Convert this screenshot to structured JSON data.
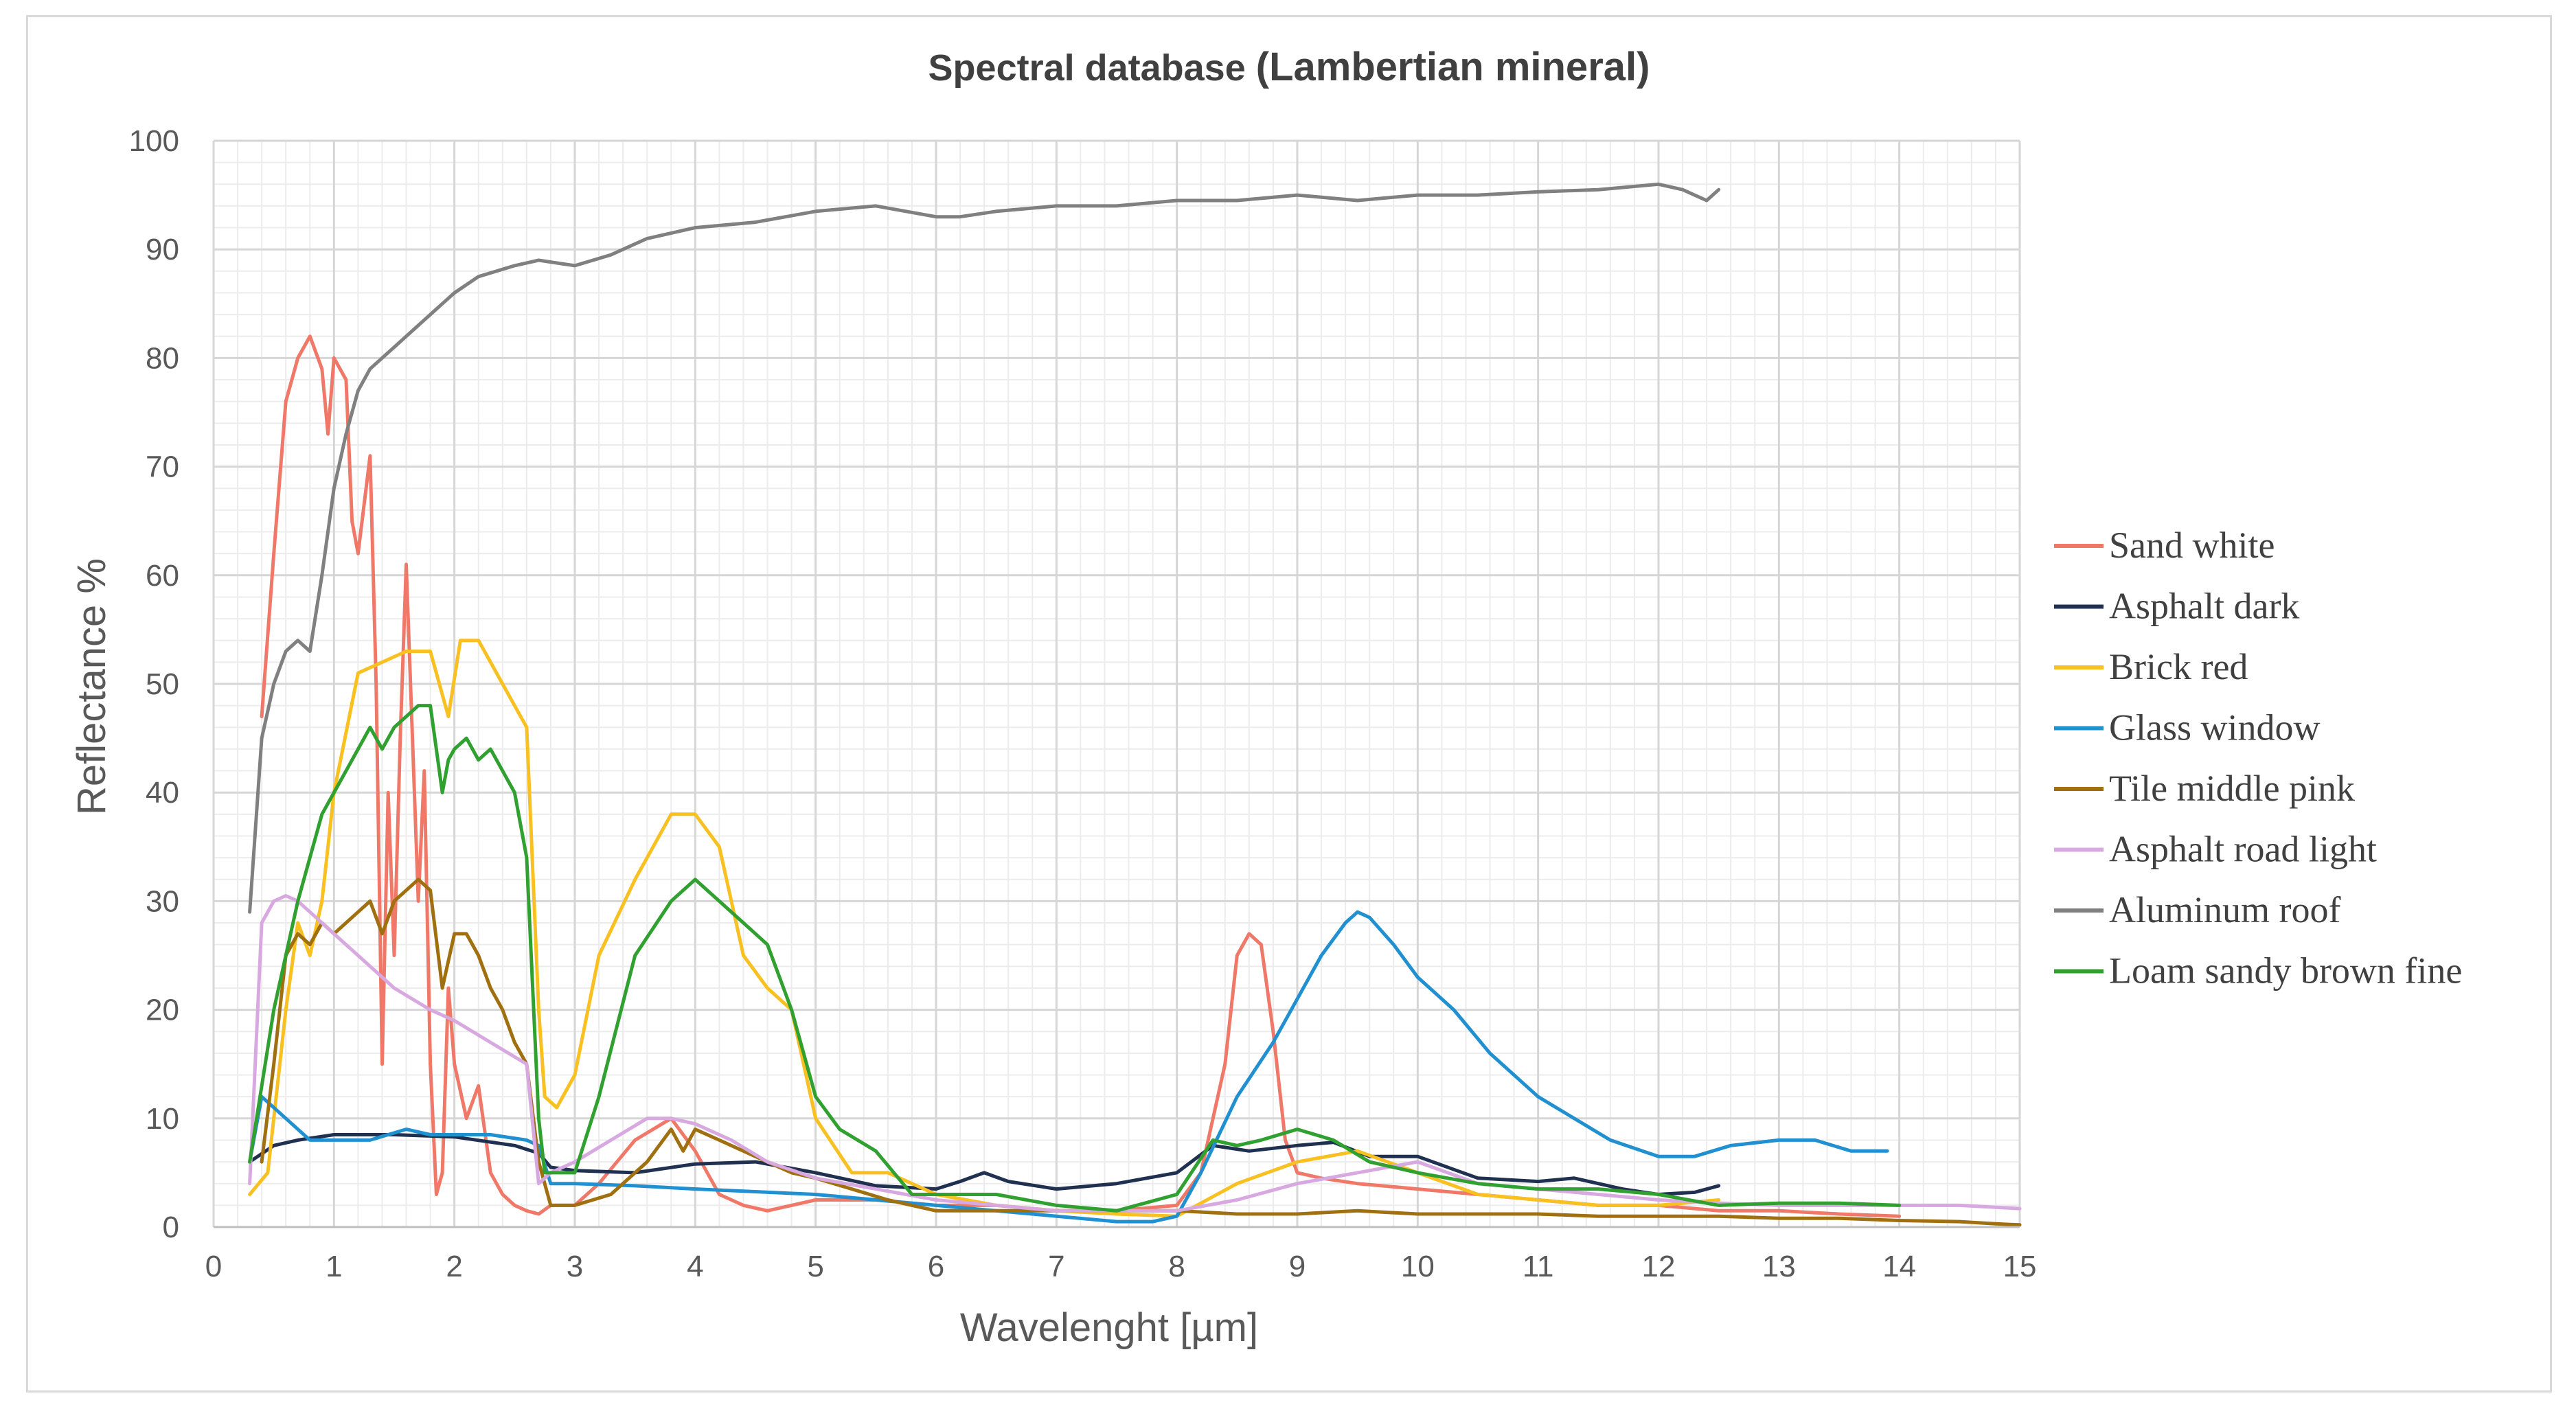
{
  "chart_data": {
    "type": "line",
    "title_parts": [
      "Spectral database ",
      "(Lambertian mineral)"
    ],
    "xlabel": "Wavelenght [µm]",
    "ylabel": "Reflectance  %",
    "xlim": [
      0,
      15
    ],
    "ylim": [
      0,
      100
    ],
    "x_ticks": [
      0,
      1,
      2,
      3,
      4,
      5,
      6,
      7,
      8,
      9,
      10,
      11,
      12,
      13,
      14,
      15
    ],
    "y_ticks": [
      0,
      10,
      20,
      30,
      40,
      50,
      60,
      70,
      80,
      90,
      100
    ],
    "grid": {
      "major": true,
      "minor": true,
      "x_minor_step": 0.2,
      "y_minor_step": 2
    },
    "legend_position": "right",
    "series": [
      {
        "name": "Sand white",
        "color": "#f07868",
        "x": [
          0.4,
          0.5,
          0.6,
          0.7,
          0.8,
          0.9,
          0.95,
          1.0,
          1.1,
          1.15,
          1.2,
          1.3,
          1.35,
          1.4,
          1.45,
          1.5,
          1.55,
          1.6,
          1.7,
          1.75,
          1.8,
          1.85,
          1.9,
          1.95,
          2.0,
          2.1,
          2.2,
          2.3,
          2.4,
          2.5,
          2.6,
          2.7,
          2.8,
          2.9,
          3.0,
          3.2,
          3.5,
          3.8,
          4.0,
          4.2,
          4.4,
          4.6,
          4.8,
          5.0,
          5.5,
          6.0,
          6.5,
          7.0,
          7.5,
          8.0,
          8.2,
          8.4,
          8.5,
          8.6,
          8.7,
          8.8,
          8.9,
          9.0,
          9.2,
          9.5,
          10.0,
          10.5,
          11.0,
          11.5,
          12.0,
          12.5,
          13.0,
          13.5,
          14.0
        ],
        "y": [
          47,
          62,
          76,
          80,
          82,
          79,
          73,
          80,
          78,
          65,
          62,
          71,
          50,
          15,
          40,
          25,
          45,
          61,
          30,
          42,
          15,
          3,
          5,
          22,
          15,
          10,
          13,
          5,
          3,
          2,
          1.5,
          1.2,
          2,
          2,
          2,
          4,
          8,
          10,
          7,
          3,
          2,
          1.5,
          2,
          2.5,
          2.5,
          2,
          2,
          1.5,
          1.5,
          2,
          5,
          15,
          25,
          27,
          26,
          18,
          8,
          5,
          4.5,
          4,
          3.5,
          3,
          2.5,
          2,
          2,
          1.5,
          1.5,
          1.2,
          1.0
        ]
      },
      {
        "name": "Asphalt dark",
        "color": "#203050",
        "x": [
          0.3,
          0.5,
          0.7,
          1.0,
          1.5,
          2.0,
          2.5,
          2.7,
          2.8,
          3.0,
          3.5,
          4.0,
          4.5,
          5.0,
          5.5,
          6.0,
          6.2,
          6.4,
          6.6,
          7.0,
          7.5,
          8.0,
          8.3,
          8.6,
          9.0,
          9.3,
          9.6,
          10.0,
          10.5,
          11.0,
          11.3,
          11.7,
          12.0,
          12.3,
          12.5
        ],
        "y": [
          6,
          7.5,
          8,
          8.5,
          8.5,
          8.3,
          7.5,
          6.8,
          5.5,
          5.2,
          5,
          5.8,
          6,
          5,
          3.8,
          3.5,
          4.2,
          5,
          4.2,
          3.5,
          4,
          5,
          7.5,
          7,
          7.5,
          7.8,
          6.5,
          6.5,
          4.5,
          4.2,
          4.5,
          3.5,
          3,
          3.2,
          3.8
        ]
      },
      {
        "name": "Brick red",
        "color": "#f8c020",
        "x": [
          0.3,
          0.45,
          0.6,
          0.7,
          0.8,
          0.9,
          1.0,
          1.2,
          1.4,
          1.6,
          1.8,
          1.95,
          2.05,
          2.2,
          2.4,
          2.6,
          2.7,
          2.75,
          2.85,
          3.0,
          3.2,
          3.5,
          3.8,
          4.0,
          4.2,
          4.4,
          4.6,
          4.8,
          5.0,
          5.3,
          5.6,
          6.0,
          6.5,
          7.0,
          7.5,
          8.0,
          8.5,
          9.0,
          9.5,
          10.0,
          10.5,
          11.0,
          11.5,
          12.0,
          12.5
        ],
        "y": [
          3,
          5,
          20,
          28,
          25,
          30,
          40,
          51,
          52,
          53,
          53,
          47,
          54,
          54,
          50,
          46,
          20,
          12,
          11,
          14,
          25,
          32,
          38,
          38,
          35,
          25,
          22,
          20,
          10,
          5,
          5,
          3,
          2,
          1.5,
          1.2,
          1,
          4,
          6,
          7,
          5,
          3,
          2.5,
          2,
          2,
          2.5
        ]
      },
      {
        "name": "Glass window",
        "color": "#2090d0",
        "x": [
          0.3,
          0.4,
          0.5,
          0.6,
          0.8,
          1.0,
          1.3,
          1.6,
          1.8,
          2.0,
          2.3,
          2.6,
          2.7,
          2.8,
          3.0,
          3.5,
          4.0,
          5.0,
          6.0,
          7.0,
          7.5,
          7.8,
          8.0,
          8.2,
          8.5,
          8.8,
          9.0,
          9.2,
          9.4,
          9.5,
          9.6,
          9.8,
          10.0,
          10.3,
          10.6,
          11.0,
          11.3,
          11.6,
          12.0,
          12.3,
          12.6,
          13.0,
          13.3,
          13.6,
          13.9
        ],
        "y": [
          6,
          12,
          11,
          10,
          8,
          8,
          8,
          9,
          8.5,
          8.5,
          8.5,
          8,
          7.5,
          4,
          4,
          3.8,
          3.5,
          3,
          2,
          1,
          0.5,
          0.5,
          1,
          5,
          12,
          17,
          21,
          25,
          28,
          29,
          28.5,
          26,
          23,
          20,
          16,
          12,
          10,
          8,
          6.5,
          6.5,
          7.5,
          8,
          8,
          7,
          7
        ]
      },
      {
        "name": "Tile middle pink",
        "color": "#a07010",
        "x": [
          0.4,
          0.5,
          0.6,
          0.7,
          0.8,
          0.9,
          1.0,
          1.2,
          1.3,
          1.4,
          1.5,
          1.6,
          1.7,
          1.8,
          1.9,
          2.0,
          2.1,
          2.2,
          2.3,
          2.4,
          2.5,
          2.6,
          2.7,
          2.8,
          3.0,
          3.3,
          3.6,
          3.8,
          3.9,
          4.0,
          4.2,
          4.4,
          4.6,
          4.8,
          5.0,
          5.3,
          5.6,
          6.0,
          6.3,
          6.6,
          7.0,
          7.5,
          8.0,
          8.5,
          9.0,
          9.5,
          10.0,
          10.5,
          11.0,
          11.5,
          12.0,
          12.5,
          13.0,
          13.5,
          14.0,
          14.5,
          14.8,
          15.0
        ],
        "y": [
          6,
          15,
          25,
          27,
          26,
          28,
          27,
          29,
          30,
          27,
          30,
          31,
          32,
          31,
          22,
          27,
          27,
          25,
          22,
          20,
          17,
          15,
          6,
          2,
          2,
          3,
          6,
          9,
          7,
          9,
          8,
          7,
          6,
          5,
          4.5,
          3.5,
          2.5,
          1.5,
          1.5,
          1.5,
          1.5,
          1.5,
          1.5,
          1.2,
          1.2,
          1.5,
          1.2,
          1.2,
          1.2,
          1,
          1,
          1,
          0.8,
          0.8,
          0.6,
          0.5,
          0.3,
          0.2
        ]
      },
      {
        "name": "Asphalt road light",
        "color": "#d8a8e0",
        "x": [
          0.3,
          0.4,
          0.5,
          0.6,
          0.7,
          0.8,
          1.0,
          1.2,
          1.5,
          1.8,
          2.0,
          2.3,
          2.6,
          2.7,
          2.8,
          3.0,
          3.3,
          3.6,
          3.8,
          4.0,
          4.3,
          4.6,
          5.0,
          5.5,
          6.0,
          6.5,
          7.0,
          7.5,
          8.0,
          8.5,
          9.0,
          9.5,
          10.0,
          10.5,
          11.0,
          11.5,
          12.0,
          12.5,
          13.0,
          13.5,
          14.0,
          14.5,
          15.0
        ],
        "y": [
          4,
          28,
          30,
          30.5,
          30,
          29,
          27,
          25,
          22,
          20,
          19,
          17,
          15,
          4,
          5,
          6,
          8,
          10,
          10,
          9.5,
          8,
          6,
          4.5,
          3.5,
          2.5,
          2,
          1.5,
          1.5,
          1.5,
          2.5,
          4,
          5,
          6,
          4,
          3.5,
          3,
          2.5,
          2.2,
          2,
          2,
          2,
          2,
          1.7
        ]
      },
      {
        "name": "Aluminum roof",
        "color": "#808080",
        "x": [
          0.3,
          0.4,
          0.5,
          0.6,
          0.7,
          0.8,
          0.9,
          1.0,
          1.1,
          1.2,
          1.3,
          1.5,
          1.7,
          1.9,
          2.0,
          2.2,
          2.5,
          2.7,
          3.0,
          3.3,
          3.6,
          4.0,
          4.5,
          5.0,
          5.5,
          6.0,
          6.2,
          6.5,
          7.0,
          7.5,
          8.0,
          8.5,
          9.0,
          9.5,
          10.0,
          10.5,
          11.0,
          11.5,
          12.0,
          12.2,
          12.4,
          12.5
        ],
        "y": [
          29,
          45,
          50,
          53,
          54,
          53,
          60,
          68,
          73,
          77,
          79,
          81,
          83,
          85,
          86,
          87.5,
          88.5,
          89,
          88.5,
          89.5,
          91,
          92,
          92.5,
          93.5,
          94,
          93,
          93,
          93.5,
          94,
          94,
          94.5,
          94.5,
          95,
          94.5,
          95,
          95,
          95.3,
          95.5,
          96,
          95.5,
          94.5,
          95.5
        ]
      },
      {
        "name": "Loam sandy brown fine",
        "color": "#30a030",
        "x": [
          0.3,
          0.5,
          0.7,
          0.9,
          1.1,
          1.3,
          1.4,
          1.5,
          1.6,
          1.7,
          1.8,
          1.9,
          1.95,
          2.0,
          2.1,
          2.2,
          2.3,
          2.5,
          2.6,
          2.7,
          2.75,
          2.8,
          3.0,
          3.2,
          3.5,
          3.8,
          4.0,
          4.2,
          4.4,
          4.6,
          4.8,
          5.0,
          5.2,
          5.5,
          5.8,
          6.0,
          6.5,
          7.0,
          7.5,
          8.0,
          8.3,
          8.5,
          8.7,
          9.0,
          9.3,
          9.6,
          10.0,
          10.5,
          11.0,
          11.5,
          12.0,
          12.5,
          13.0,
          13.5,
          14.0
        ],
        "y": [
          6,
          20,
          30,
          38,
          42,
          46,
          44,
          46,
          47,
          48,
          48,
          40,
          43,
          44,
          45,
          43,
          44,
          40,
          34,
          10,
          5,
          5,
          5,
          12,
          25,
          30,
          32,
          30,
          28,
          26,
          20,
          12,
          9,
          7,
          3,
          3,
          3,
          2,
          1.5,
          3,
          8,
          7.5,
          8,
          9,
          8,
          6,
          5,
          4,
          3.5,
          3.5,
          3,
          2,
          2.2,
          2.2,
          2
        ]
      }
    ]
  }
}
